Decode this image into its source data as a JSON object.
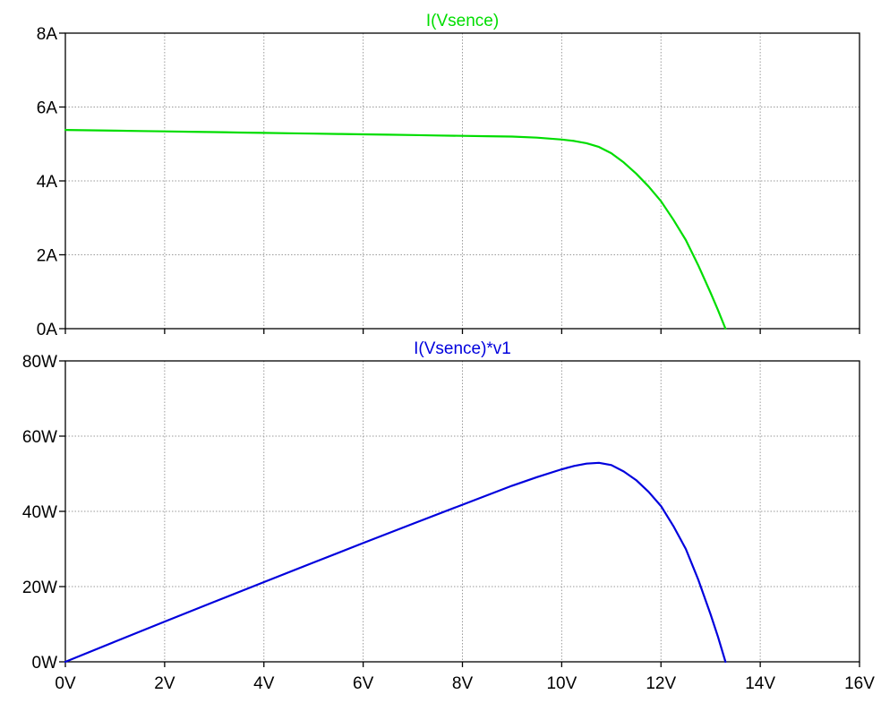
{
  "chart_data": [
    {
      "type": "line",
      "title": "I(Vsence)",
      "color": "#00dd00",
      "x_ticks": [
        "0V",
        "2V",
        "4V",
        "6V",
        "8V",
        "10V",
        "12V",
        "14V",
        "16V"
      ],
      "y_ticks": [
        "0A",
        "2A",
        "4A",
        "6A",
        "8A"
      ],
      "xlim": [
        0,
        16
      ],
      "ylim": [
        0,
        8
      ],
      "grid": true,
      "series": [
        {
          "x": [
            0,
            0.5,
            1,
            1.5,
            2,
            2.5,
            3,
            3.5,
            4,
            4.5,
            5,
            5.5,
            6,
            6.5,
            7,
            7.5,
            8,
            8.5,
            9,
            9.5,
            10,
            10.25,
            10.5,
            10.75,
            11,
            11.25,
            11.5,
            11.75,
            12,
            12.25,
            12.5,
            12.75,
            13,
            13.15,
            13.3
          ],
          "y": [
            5.38,
            5.37,
            5.36,
            5.35,
            5.34,
            5.33,
            5.32,
            5.31,
            5.3,
            5.29,
            5.28,
            5.27,
            5.26,
            5.25,
            5.24,
            5.23,
            5.22,
            5.21,
            5.2,
            5.17,
            5.12,
            5.08,
            5.02,
            4.92,
            4.75,
            4.5,
            4.2,
            3.85,
            3.45,
            2.95,
            2.4,
            1.72,
            0.97,
            0.5,
            0.0
          ]
        }
      ]
    },
    {
      "type": "line",
      "title": "I(Vsence)*v1",
      "color": "#0000dd",
      "x_ticks": [
        "0V",
        "2V",
        "4V",
        "6V",
        "8V",
        "10V",
        "12V",
        "14V",
        "16V"
      ],
      "y_ticks": [
        "0W",
        "20W",
        "40W",
        "60W",
        "80W"
      ],
      "xlim": [
        0,
        16
      ],
      "ylim": [
        0,
        80
      ],
      "grid": true,
      "series": [
        {
          "x": [
            0,
            1,
            2,
            3,
            4,
            5,
            6,
            7,
            8,
            9,
            9.5,
            10,
            10.25,
            10.5,
            10.75,
            11,
            11.25,
            11.5,
            11.75,
            12,
            12.25,
            12.5,
            12.75,
            13,
            13.15,
            13.3
          ],
          "y": [
            0,
            5.36,
            10.68,
            15.96,
            21.2,
            26.4,
            31.56,
            36.68,
            41.76,
            46.8,
            49.1,
            51.2,
            52.07,
            52.7,
            52.9,
            52.3,
            50.6,
            48.3,
            45.2,
            41.4,
            36.1,
            30.0,
            21.9,
            12.6,
            6.6,
            0
          ]
        }
      ]
    }
  ]
}
